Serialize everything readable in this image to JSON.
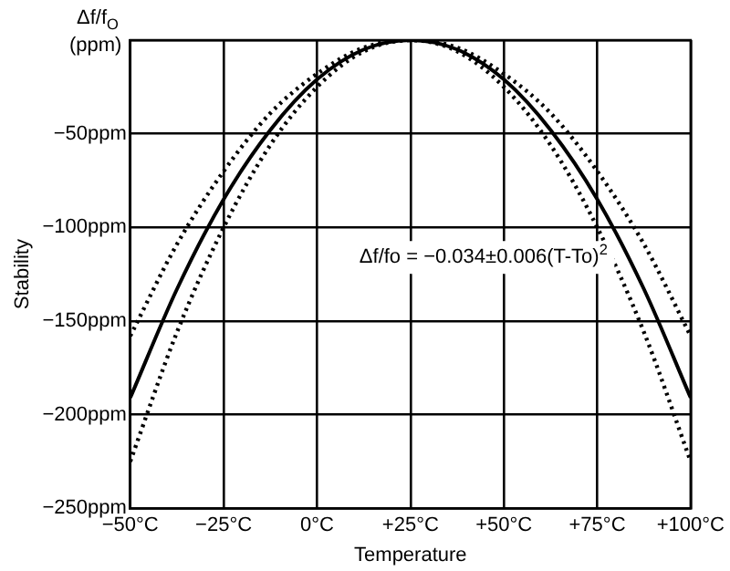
{
  "chart_data": {
    "type": "line",
    "xlabel": "Temperature",
    "ylabel": "Stability",
    "annotations": [
      "Δf/f$_{O}$ (ppm)",
      "Δf/fo = −0.034±0.006(T-To)$^{2}$"
    ],
    "x": [
      -50,
      -37.5,
      -25,
      -12.5,
      0,
      12.5,
      25,
      37.5,
      50,
      62.5,
      75,
      87.5,
      100
    ],
    "series": [
      {
        "color": "#000000",
        "line_style": "solid",
        "values": [
          -191,
          -133,
          -85,
          -48,
          -21,
          -5,
          0,
          -5,
          -21,
          -48,
          -85,
          -133,
          -191
        ]
      },
      {
        "color": "#000000",
        "line_style": "dotted",
        "values": [
          -158,
          -109,
          -70,
          -39,
          -18,
          -4,
          0,
          -4,
          -18,
          -39,
          -70,
          -109,
          -158
        ]
      },
      {
        "color": "#000000",
        "line_style": "dotted",
        "values": [
          -225,
          -156,
          -100,
          -56,
          -25,
          -6,
          0,
          -6,
          -25,
          -56,
          -100,
          -156,
          -225
        ]
      }
    ],
    "xlim": [
      -50,
      100
    ],
    "xticks": [
      {
        "value": -50,
        "label": "−50°C"
      },
      {
        "value": -25,
        "label": "−25°C"
      },
      {
        "value": 0,
        "label": "0°C"
      },
      {
        "value": 25,
        "label": "+25°C"
      },
      {
        "value": 50,
        "label": "+50°C"
      },
      {
        "value": 75,
        "label": "+75°C"
      },
      {
        "value": 100,
        "label": "+100°C"
      }
    ],
    "ylim": [
      -250,
      0
    ],
    "yticks": [
      {
        "value": -250,
        "label": "−250ppm"
      },
      {
        "value": -200,
        "label": "−200ppm"
      },
      {
        "value": -150,
        "label": "−150ppm"
      },
      {
        "value": -100,
        "label": "−100ppm"
      },
      {
        "value": -50,
        "label": "−50ppm"
      },
      {
        "value": 0,
        "label": null
      }
    ],
    "grid": true,
    "legend": false,
    "marker": "none"
  }
}
